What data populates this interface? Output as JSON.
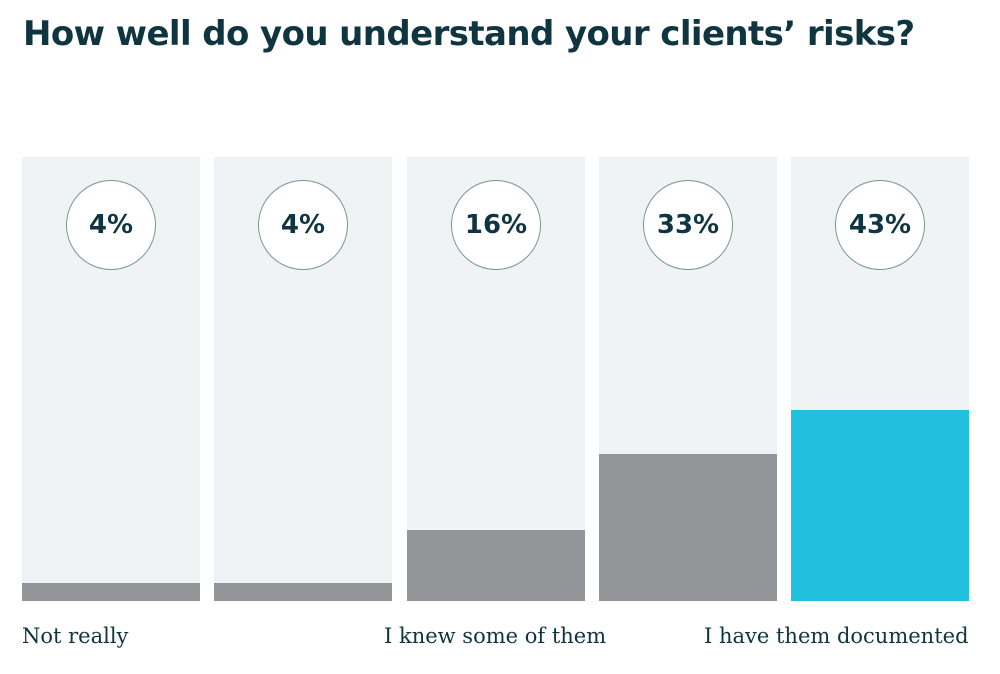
{
  "chart_data": {
    "type": "bar",
    "title": "How well do you understand your clients’ risks?",
    "categories": [
      "",
      "",
      "",
      "",
      ""
    ],
    "values": [
      4,
      4,
      16,
      33,
      43
    ],
    "value_labels": [
      "4%",
      "4%",
      "16%",
      "33%",
      "43%"
    ],
    "axis_labels": [
      {
        "text": "Not really",
        "align": "start"
      },
      {
        "text": "I knew some of them",
        "align": "middle"
      },
      {
        "text": "I have them documented",
        "align": "end"
      }
    ],
    "ylim": [
      0,
      100
    ],
    "colors": {
      "default": "#939598",
      "highlight": "#20c0de",
      "background": "#eff3f4"
    },
    "highlight_index": 4
  }
}
